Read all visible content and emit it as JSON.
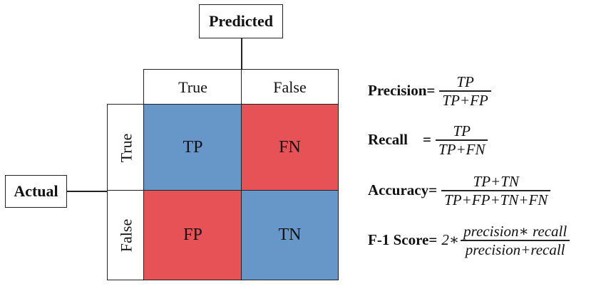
{
  "predicted_label": "Predicted",
  "actual_label": "Actual",
  "columns": [
    "True",
    "False"
  ],
  "rows": [
    "True",
    "False"
  ],
  "cells": [
    {
      "label": "TP",
      "color": "#6796c9"
    },
    {
      "label": "FN",
      "color": "#e65256"
    },
    {
      "label": "FP",
      "color": "#e65256"
    },
    {
      "label": "TN",
      "color": "#6796c9"
    }
  ],
  "formulas": {
    "precision": {
      "name": "Precision=",
      "num": "TP",
      "den": "TP+FP"
    },
    "recall": {
      "name": "Recall    =",
      "num": "TP",
      "den": "TP+FN"
    },
    "accuracy": {
      "name": "Accuracy=",
      "num": "TP+TN",
      "den": "TP+FP+TN+FN"
    },
    "f1": {
      "name": "F-1 Score=",
      "coef": "2∗",
      "num": "precision∗ recall",
      "den": "precision+recall"
    }
  }
}
